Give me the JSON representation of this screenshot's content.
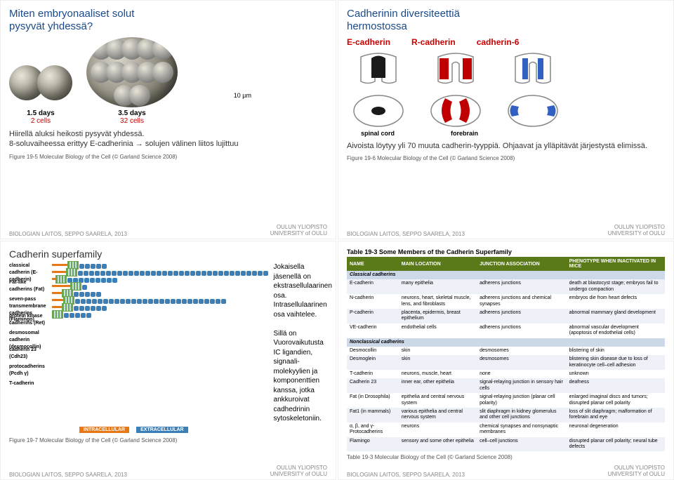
{
  "panel1": {
    "title_line1": "Miten embryonaaliset solut",
    "title_line2": "pysyvät yhdessä?",
    "days1": "1.5 days",
    "cells1": "2 cells",
    "days2": "3.5 days",
    "cells2": "32 cells",
    "scale": "10 µm",
    "sub1": "Hiirellä aluksi heikosti pysyvät yhdessä.",
    "sub2": "8-soluvaiheessa erittyy E-cadherinia → solujen välinen liitos lujittuu",
    "credit": "Figure 19-5 Molecular Biology of the Cell (© Garland Science 2008)"
  },
  "panel2": {
    "title_line1": "Cadherinin diversiteettiä",
    "title_line2": "hermostossa",
    "cadherins": [
      "E-cadherin",
      "R-cadherin",
      "cadherin-6"
    ],
    "colors": [
      "#1a1a1a",
      "#c00000",
      "#3060c0"
    ],
    "organs": [
      "spinal cord",
      "forebrain"
    ],
    "sub": "Aivoista löytyy yli 70 muuta cadherin-tyyppiä. Ohjaavat ja ylläpitävät järjestystä elimissä.",
    "credit": "Figure 19-6 Molecular Biology of the Cell (© Garland Science 2008)"
  },
  "panel3": {
    "title": "Cadherin superfamily",
    "families": [
      {
        "name": "classical cadherin (E-cadherin)",
        "intra": 22,
        "ec": 5
      },
      {
        "name": "Fat-like cadherins (Fat)",
        "intra": 20,
        "ec": 34
      },
      {
        "name": "seven-pass transmembrane cadherins (Flamingo)",
        "intra": 5,
        "ec": 9
      },
      {
        "name": "protein kinase cadherins (Ret)",
        "intra": 26,
        "ec": 1
      },
      {
        "name": "desmosomal cadherin (desmocollin)",
        "intra": 14,
        "ec": 5
      },
      {
        "name": "cadherin 23 (Cdh23)",
        "intra": 16,
        "ec": 27
      },
      {
        "name": "protocadherins (Pcdh γ)",
        "intra": 14,
        "ec": 6
      },
      {
        "name": "T-cadherin",
        "intra": 0,
        "ec": 5
      }
    ],
    "dom_intra": "INTRACELLULAR",
    "dom_extra": "EXTRACELLULAR",
    "desc1": "Jokaisella jäsenellä on ekstrasellulaarinen osa. Intrasellulaarinen osa vaihtelee.",
    "desc2": "Sillä on Vuorovaikutusta IC ligandien, signaali-molekyylien ja komponenttien kanssa, jotka ankkuroivat cadhedrinin sytoskeletoniin.",
    "credit": "Figure 19-7 Molecular Biology of the Cell (© Garland Science 2008)"
  },
  "panel4": {
    "tbl_title": "Table 19-3 Some Members of the Cadherin Superfamily",
    "columns": [
      "NAME",
      "MAIN LOCATION",
      "JUNCTION ASSOCIATION",
      "PHENOTYPE WHEN INACTIVATED IN MICE"
    ],
    "section1": "Classical cadherins",
    "rows1": [
      [
        "E-cadherin",
        "many epithelia",
        "adherens junctions",
        "death at blastocyst stage; embryos fail to undergo compaction"
      ],
      [
        "N-cadherin",
        "neurons, heart, skeletal muscle, lens, and fibroblasts",
        "adherens junctions and chemical synapses",
        "embryos die from heart defects"
      ],
      [
        "P-cadherin",
        "placenta, epidermis, breast epithelium",
        "adherens junctions",
        "abnormal mammary gland development"
      ],
      [
        "VE-cadherin",
        "endothelial cells",
        "adherens junctions",
        "abnormal vascular development (apoptosis of endothelial cells)"
      ]
    ],
    "section2": "Nonclassical cadherins",
    "rows2": [
      [
        "Desmocollin",
        "skin",
        "desmosomes",
        "blistering of skin"
      ],
      [
        "Desmoglein",
        "skin",
        "desmosomes",
        "blistering skin disease due to loss of keratinocyte cell–cell adhesion"
      ],
      [
        "T-cadherin",
        "neurons, muscle, heart",
        "none",
        "unknown"
      ],
      [
        "Cadherin 23",
        "inner ear, other epithelia",
        "signal-relaying junction in sensory hair cells",
        "deafness"
      ],
      [
        "Fat (in Drosophila)",
        "epithelia and central nervous system",
        "signal-relaying junction (planar cell polarity)",
        "enlarged imaginal discs and tumors; disrupted planar cell polarity"
      ],
      [
        "Fat1 (in mammals)",
        "various epithelia and central nervous system",
        "slit diaphragm in kidney glomerulus and other cell junctions",
        "loss of slit diaphragm; malformation of forebrain and eye"
      ],
      [
        "α, β, and γ-Protocadherins",
        "neurons",
        "chemical synapses and nonsynaptic membranes",
        "neuronal degeneration"
      ],
      [
        "Flamingo",
        "sensory and some other epithelia",
        "cell–cell junctions",
        "disrupted planar cell polarity; neural tube defects"
      ]
    ],
    "credit": "Table 19-3 Molecular Biology of the Cell (© Garland Science 2008)"
  },
  "footer": {
    "left": "BIOLOGIAN LAITOS, SEPPO SAARELA, 2013",
    "right1": "OULUN YLIOPISTO",
    "right2": "UNIVERSITY of OULU"
  }
}
